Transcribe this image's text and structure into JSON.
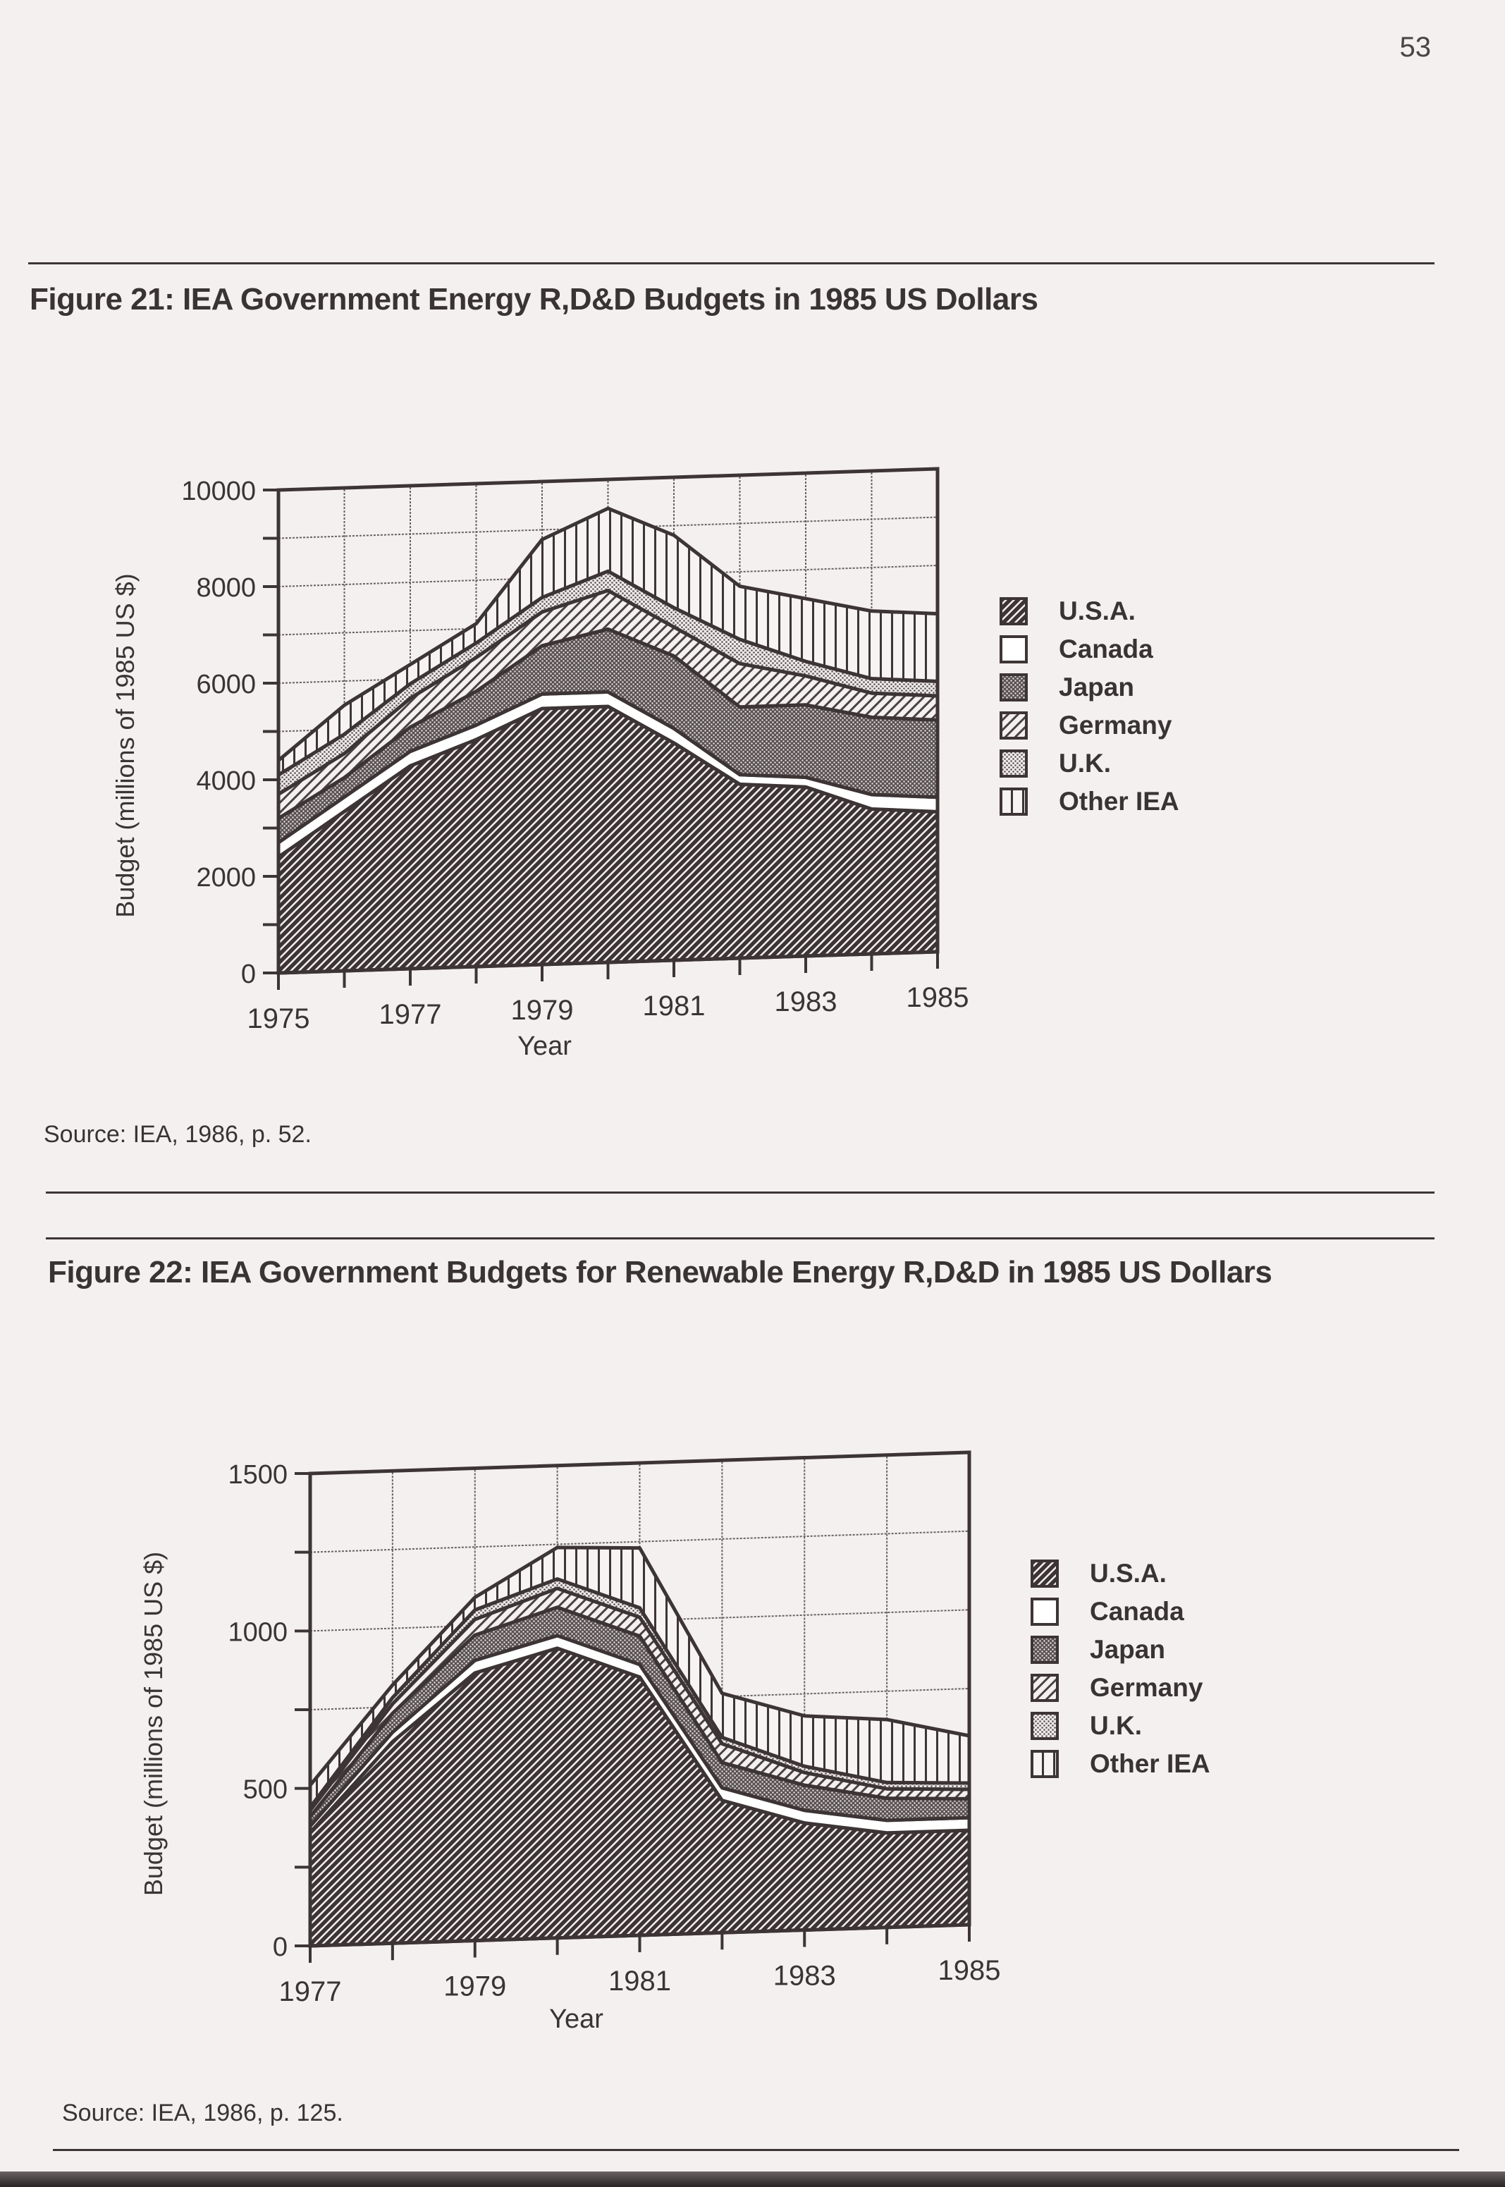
{
  "page": {
    "number": "53"
  },
  "figures": [
    {
      "title": "Figure 21:  IEA Government Energy R,D&D Budgets in 1985 US Dollars",
      "source": "Source:  IEA, 1986, p. 52."
    },
    {
      "title": "Figure 22:  IEA Government Budgets for Renewable Energy R,D&D in 1985 US Dollars",
      "source": "Source:  IEA, 1986, p. 125."
    }
  ],
  "legend_patterns": {
    "U.S.A.": "dense-diagonal-dark",
    "Canada": "white",
    "Japan": "dark-dots",
    "Germany": "light-diagonal",
    "U.K.": "light-dots",
    "Other IEA": "vertical-lines"
  },
  "chart_data": [
    {
      "type": "area",
      "stacked": true,
      "title": "Figure 21:  IEA Government Energy R,D&D Budgets in 1985 US Dollars",
      "xlabel": "Year",
      "ylabel": "Budget  (millions of 1985 US $)",
      "x": [
        1975,
        1976,
        1977,
        1978,
        1979,
        1980,
        1981,
        1982,
        1983,
        1984,
        1985
      ],
      "xticks": [
        "1975",
        "1977",
        "1979",
        "1981",
        "1983",
        "1985"
      ],
      "yticks": [
        "0",
        "2000",
        "4000",
        "6000",
        "8000",
        "10000"
      ],
      "ylim": [
        0,
        10000
      ],
      "grid": true,
      "legend_position": "right",
      "series": [
        {
          "name": "U.S.A.",
          "values": [
            2400,
            3300,
            4200,
            4700,
            5300,
            5300,
            4500,
            3600,
            3500,
            3000,
            2900
          ]
        },
        {
          "name": "Canada",
          "values": [
            300,
            300,
            300,
            300,
            300,
            300,
            300,
            200,
            200,
            300,
            300
          ]
        },
        {
          "name": "Japan",
          "values": [
            500,
            400,
            500,
            700,
            1000,
            1300,
            1500,
            1400,
            1500,
            1600,
            1600
          ]
        },
        {
          "name": "Germany",
          "values": [
            500,
            500,
            600,
            700,
            700,
            800,
            600,
            900,
            600,
            500,
            500
          ]
        },
        {
          "name": "U.K.",
          "values": [
            400,
            400,
            300,
            300,
            300,
            400,
            400,
            500,
            300,
            300,
            300
          ]
        },
        {
          "name": "Other IEA",
          "values": [
            300,
            600,
            400,
            400,
            1200,
            1300,
            1500,
            1100,
            1300,
            1400,
            1400
          ]
        }
      ]
    },
    {
      "type": "area",
      "stacked": true,
      "title": "Figure 22:  IEA Government Budgets for Renewable Energy R,D&D in 1985 US Dollars",
      "xlabel": "Year",
      "ylabel": "Budget  (millions of 1985 US $)",
      "x": [
        1977,
        1978,
        1979,
        1980,
        1981,
        1982,
        1983,
        1984,
        1985
      ],
      "xticks": [
        "1977",
        "1979",
        "1981",
        "1983",
        "1985"
      ],
      "yticks": [
        "0",
        "500",
        "1000",
        "1500"
      ],
      "ylim": [
        0,
        1500
      ],
      "grid": true,
      "legend_position": "right",
      "series": [
        {
          "name": "U.S.A.",
          "values": [
            360,
            640,
            850,
            920,
            820,
            420,
            340,
            300,
            300
          ]
        },
        {
          "name": "Canada",
          "values": [
            20,
            30,
            40,
            40,
            40,
            40,
            40,
            40,
            40
          ]
        },
        {
          "name": "Japan",
          "values": [
            30,
            60,
            80,
            90,
            90,
            80,
            80,
            70,
            60
          ]
        },
        {
          "name": "Germany",
          "values": [
            20,
            30,
            50,
            60,
            60,
            60,
            40,
            30,
            30
          ]
        },
        {
          "name": "U.K.",
          "values": [
            10,
            20,
            30,
            30,
            30,
            20,
            20,
            20,
            20
          ]
        },
        {
          "name": "Other IEA",
          "values": [
            70,
            40,
            40,
            100,
            190,
            140,
            160,
            200,
            150
          ]
        }
      ]
    }
  ]
}
